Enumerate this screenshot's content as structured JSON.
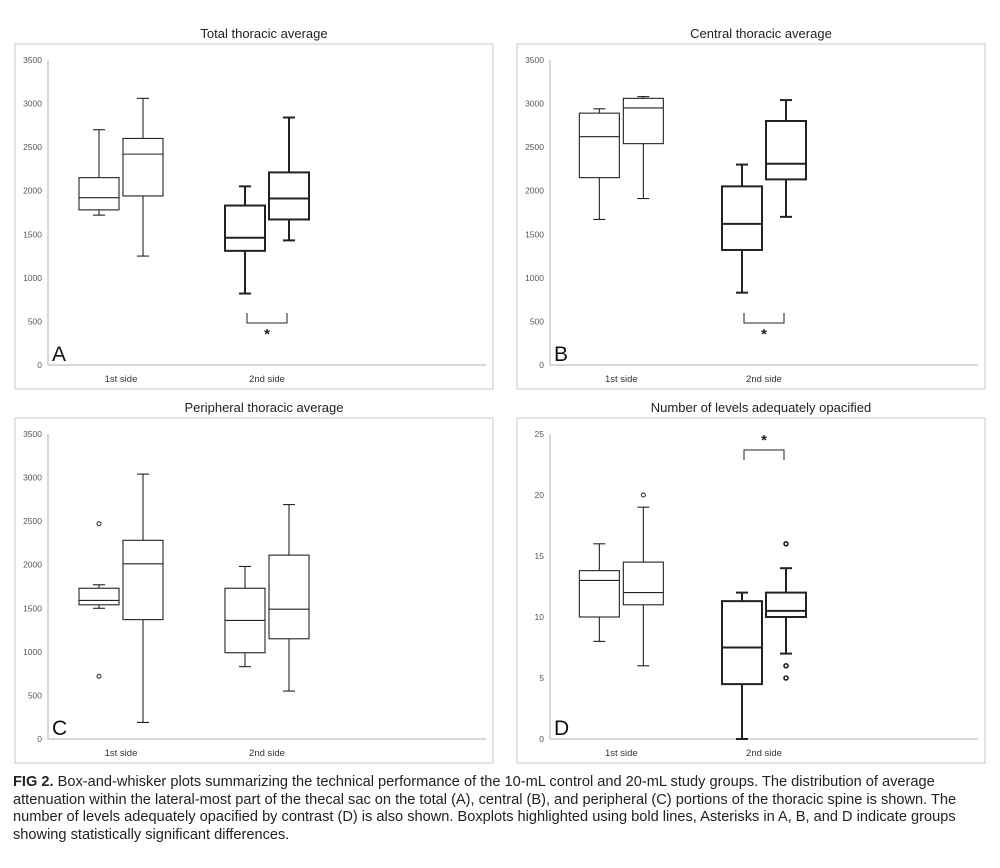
{
  "figure": {
    "caption_label": "FIG 2.",
    "caption_text": "Box-and-whisker plots summarizing the technical performance of the 10-mL control and 20-mL study groups. The distribution of average attenuation within the lateral-most part of the thecal sac on the total (A), central (B), and peripheral (C) portions of the thoracic spine is shown. The number of levels adequately opacified by contrast (D) is also shown. Boxplots highlighted using bold lines, Asterisks in A, B, and D indicate groups showing statistically significant differences."
  },
  "chart_data": [
    {
      "type": "box",
      "panel_letter": "A",
      "title": "Total thoracic average",
      "categories": [
        "1st side",
        "2nd side"
      ],
      "ylim": [
        0,
        3500
      ],
      "yticks": [
        0,
        500,
        1000,
        1500,
        2000,
        2500,
        3000,
        3500
      ],
      "boxes": [
        {
          "category": "1st side",
          "bold": false,
          "min": 1720,
          "q1": 1780,
          "median": 1920,
          "q3": 2150,
          "max": 2700,
          "outliers": []
        },
        {
          "category": "1st side",
          "bold": false,
          "min": 1250,
          "q1": 1940,
          "median": 2420,
          "q3": 2600,
          "max": 3060,
          "outliers": []
        },
        {
          "category": "2nd side",
          "bold": true,
          "min": 820,
          "q1": 1310,
          "median": 1460,
          "q3": 1830,
          "max": 2050,
          "outliers": []
        },
        {
          "category": "2nd side",
          "bold": true,
          "min": 1430,
          "q1": 1670,
          "median": 1910,
          "q3": 2210,
          "max": 2840,
          "outliers": []
        }
      ],
      "significance": {
        "category": "2nd side",
        "position": "below",
        "marker": "*"
      }
    },
    {
      "type": "box",
      "panel_letter": "B",
      "title": "Central thoracic average",
      "categories": [
        "1st side",
        "2nd side"
      ],
      "ylim": [
        0,
        3500
      ],
      "yticks": [
        0,
        500,
        1000,
        1500,
        2000,
        2500,
        3000,
        3500
      ],
      "boxes": [
        {
          "category": "1st side",
          "bold": false,
          "min": 1670,
          "q1": 2150,
          "median": 2620,
          "q3": 2890,
          "max": 2940,
          "outliers": []
        },
        {
          "category": "1st side",
          "bold": false,
          "min": 1910,
          "q1": 2540,
          "median": 2950,
          "q3": 3060,
          "max": 3080,
          "outliers": []
        },
        {
          "category": "2nd side",
          "bold": true,
          "min": 830,
          "q1": 1320,
          "median": 1620,
          "q3": 2050,
          "max": 2300,
          "outliers": []
        },
        {
          "category": "2nd side",
          "bold": true,
          "min": 1700,
          "q1": 2130,
          "median": 2310,
          "q3": 2800,
          "max": 3040,
          "outliers": []
        }
      ],
      "significance": {
        "category": "2nd side",
        "position": "below",
        "marker": "*"
      }
    },
    {
      "type": "box",
      "panel_letter": "C",
      "title": "Peripheral thoracic average",
      "categories": [
        "1st side",
        "2nd side"
      ],
      "ylim": [
        0,
        3500
      ],
      "yticks": [
        0,
        500,
        1000,
        1500,
        2000,
        2500,
        3000,
        3500
      ],
      "boxes": [
        {
          "category": "1st side",
          "bold": false,
          "min": 1500,
          "q1": 1540,
          "median": 1590,
          "q3": 1730,
          "max": 1770,
          "outliers": [
            2470,
            720
          ]
        },
        {
          "category": "1st side",
          "bold": false,
          "min": 190,
          "q1": 1370,
          "median": 2010,
          "q3": 2280,
          "max": 3040,
          "outliers": []
        },
        {
          "category": "2nd side",
          "bold": false,
          "min": 830,
          "q1": 990,
          "median": 1360,
          "q3": 1730,
          "max": 1980,
          "outliers": []
        },
        {
          "category": "2nd side",
          "bold": false,
          "min": 550,
          "q1": 1150,
          "median": 1490,
          "q3": 2110,
          "max": 2690,
          "outliers": []
        }
      ],
      "significance": null
    },
    {
      "type": "box",
      "panel_letter": "D",
      "title": "Number of levels adequately opacified",
      "categories": [
        "1st side",
        "2nd side"
      ],
      "ylim": [
        0,
        25
      ],
      "yticks": [
        0,
        5,
        10,
        15,
        20,
        25
      ],
      "boxes": [
        {
          "category": "1st side",
          "bold": false,
          "min": 8,
          "q1": 10,
          "median": 13,
          "q3": 13.8,
          "max": 16,
          "outliers": []
        },
        {
          "category": "1st side",
          "bold": false,
          "min": 6,
          "q1": 11,
          "median": 12,
          "q3": 14.5,
          "max": 19,
          "outliers": [
            20
          ]
        },
        {
          "category": "2nd side",
          "bold": true,
          "min": 0,
          "q1": 4.5,
          "median": 7.5,
          "q3": 11.3,
          "max": 12,
          "outliers": []
        },
        {
          "category": "2nd side",
          "bold": true,
          "min": 7,
          "q1": 10,
          "median": 10.5,
          "q3": 12,
          "max": 14,
          "outliers": [
            16,
            6,
            5
          ]
        }
      ],
      "significance": {
        "category": "2nd side",
        "position": "above",
        "marker": "*"
      }
    }
  ]
}
